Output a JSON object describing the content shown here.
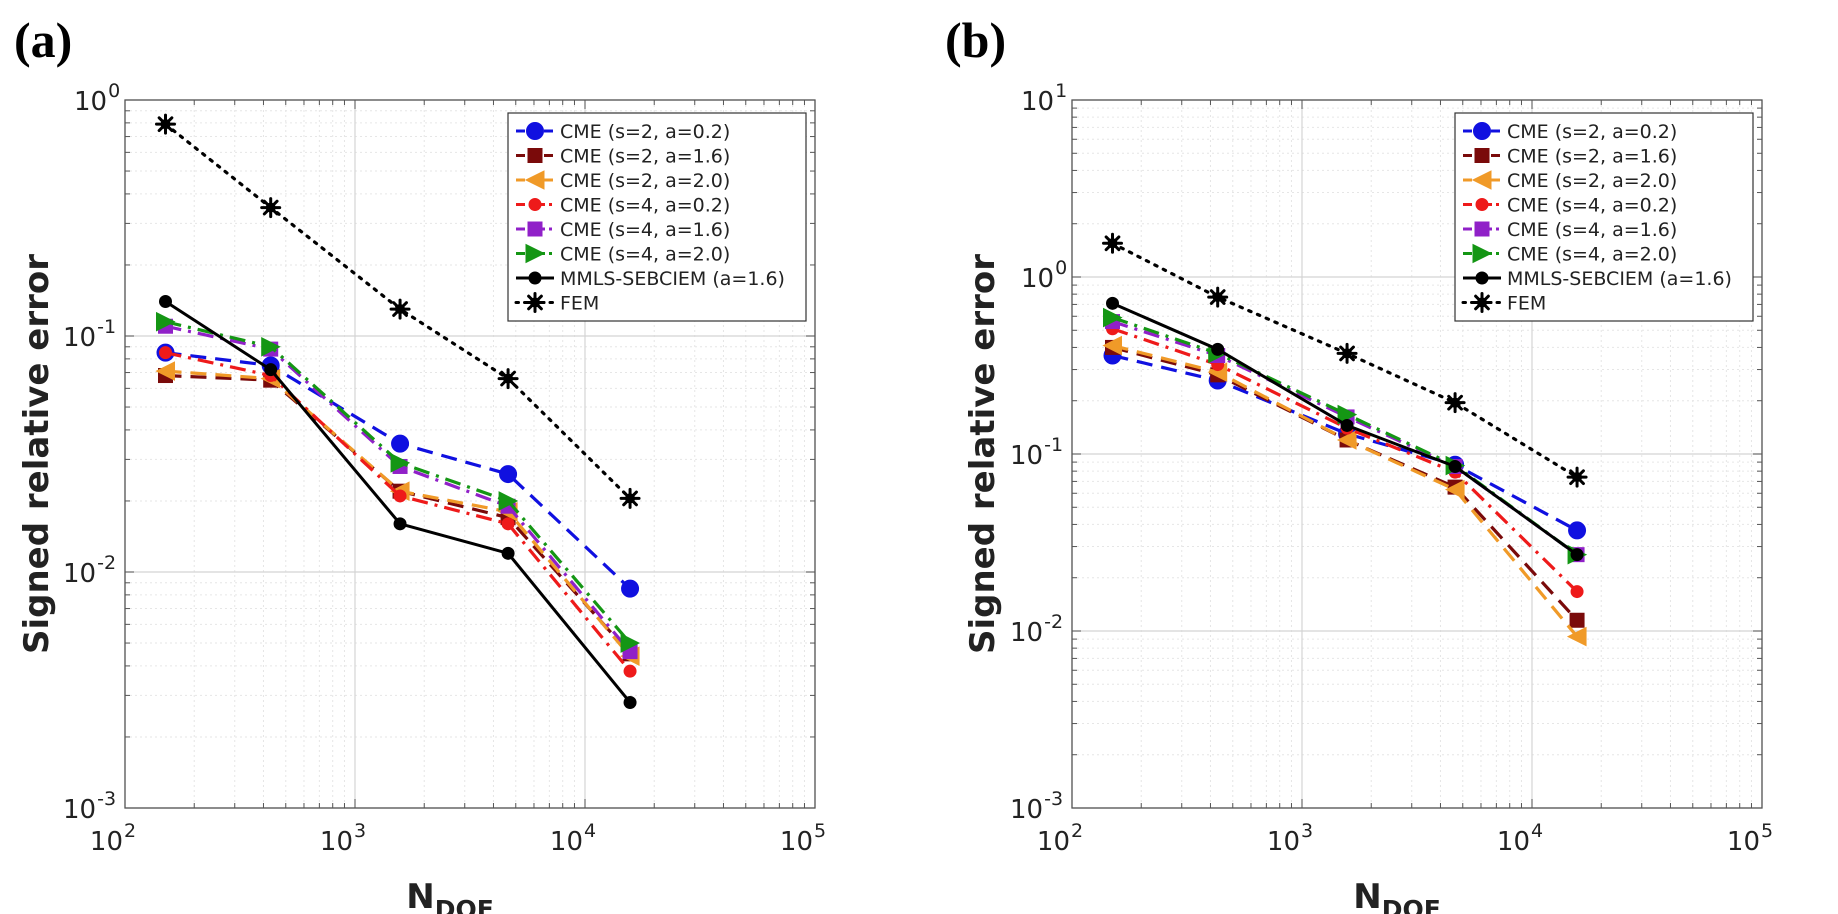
{
  "chart_data": [
    {
      "panel_label": "(a)",
      "type": "line",
      "scale": "loglog",
      "xlabel": {
        "main": "N",
        "sub": "DOF"
      },
      "ylabel": "Signed relative error",
      "xlim": [
        100,
        100000
      ],
      "ylim": [
        0.001,
        1
      ],
      "x_ticks": [
        {
          "base": "10",
          "exp": "2"
        },
        {
          "base": "10",
          "exp": "3"
        },
        {
          "base": "10",
          "exp": "4"
        },
        {
          "base": "10",
          "exp": "5"
        }
      ],
      "y_ticks": [
        {
          "base": "10",
          "exp": "-3"
        },
        {
          "base": "10",
          "exp": "-2"
        },
        {
          "base": "10",
          "exp": "-1"
        },
        {
          "base": "10",
          "exp": "0"
        }
      ],
      "grid": true,
      "legend_position": "top-right",
      "x": [
        150,
        430,
        1570,
        4630,
        15700
      ],
      "series": [
        {
          "name": "CME (s=2, a=0.2)",
          "color": "#1010e0",
          "dash": "dashed",
          "marker": "circle",
          "values": [
            0.085,
            0.075,
            0.035,
            0.026,
            0.0085
          ]
        },
        {
          "name": "CME (s=2, a=1.6)",
          "color": "#7a0a0a",
          "dash": "dashed",
          "marker": "square",
          "values": [
            0.068,
            0.065,
            0.022,
            0.017,
            0.0045
          ]
        },
        {
          "name": "CME (s=2, a=2.0)",
          "color": "#f09a28",
          "dash": "dashed",
          "marker": "triangle-left",
          "values": [
            0.071,
            0.066,
            0.022,
            0.018,
            0.0044
          ]
        },
        {
          "name": "CME (s=4, a=0.2)",
          "color": "#ee1a1a",
          "dash": "dashdot",
          "marker": "circle-small",
          "values": [
            0.085,
            0.068,
            0.021,
            0.016,
            0.0038
          ]
        },
        {
          "name": "CME (s=4, a=1.6)",
          "color": "#9020c8",
          "dash": "dashdot",
          "marker": "square",
          "values": [
            0.11,
            0.088,
            0.028,
            0.019,
            0.0046
          ]
        },
        {
          "name": "CME (s=4, a=2.0)",
          "color": "#149614",
          "dash": "dashdot",
          "marker": "triangle-right",
          "values": [
            0.115,
            0.09,
            0.029,
            0.02,
            0.005
          ]
        },
        {
          "name": "MMLS-SEBCIEM (a=1.6)",
          "color": "#000000",
          "dash": "solid",
          "marker": "circle-small",
          "values": [
            0.14,
            0.072,
            0.016,
            0.012,
            0.0028
          ]
        },
        {
          "name": "FEM",
          "color": "#000000",
          "dash": "dotted",
          "marker": "star",
          "values": [
            0.79,
            0.35,
            0.13,
            0.066,
            0.0205
          ]
        }
      ]
    },
    {
      "panel_label": "(b)",
      "type": "line",
      "scale": "loglog",
      "xlabel": {
        "main": "N",
        "sub": "DOF"
      },
      "ylabel": "Signed relative error",
      "xlim": [
        100,
        100000
      ],
      "ylim": [
        0.001,
        10
      ],
      "x_ticks": [
        {
          "base": "10",
          "exp": "2"
        },
        {
          "base": "10",
          "exp": "3"
        },
        {
          "base": "10",
          "exp": "4"
        },
        {
          "base": "10",
          "exp": "5"
        }
      ],
      "y_ticks": [
        {
          "base": "10",
          "exp": "-3"
        },
        {
          "base": "10",
          "exp": "-2"
        },
        {
          "base": "10",
          "exp": "-1"
        },
        {
          "base": "10",
          "exp": "0"
        },
        {
          "base": "10",
          "exp": "1"
        }
      ],
      "grid": true,
      "legend_position": "top-right",
      "x": [
        150,
        430,
        1570,
        4630,
        15700
      ],
      "series": [
        {
          "name": "CME (s=2, a=0.2)",
          "color": "#1010e0",
          "dash": "dashed",
          "marker": "circle",
          "values": [
            0.36,
            0.26,
            0.13,
            0.087,
            0.037
          ]
        },
        {
          "name": "CME (s=2, a=1.6)",
          "color": "#7a0a0a",
          "dash": "dashed",
          "marker": "square",
          "values": [
            0.4,
            0.28,
            0.12,
            0.065,
            0.0115
          ]
        },
        {
          "name": "CME (s=2, a=2.0)",
          "color": "#f09a28",
          "dash": "dashed",
          "marker": "triangle-left",
          "values": [
            0.41,
            0.29,
            0.12,
            0.063,
            0.0093
          ]
        },
        {
          "name": "CME (s=4, a=0.2)",
          "color": "#ee1a1a",
          "dash": "dashdot",
          "marker": "circle-small",
          "values": [
            0.51,
            0.32,
            0.14,
            0.079,
            0.0167
          ]
        },
        {
          "name": "CME (s=4, a=1.6)",
          "color": "#9020c8",
          "dash": "dashdot",
          "marker": "square",
          "values": [
            0.56,
            0.36,
            0.162,
            0.085,
            0.027
          ]
        },
        {
          "name": "CME (s=4, a=2.0)",
          "color": "#149614",
          "dash": "dashdot",
          "marker": "triangle-right",
          "values": [
            0.59,
            0.37,
            0.167,
            0.086,
            0.027
          ]
        },
        {
          "name": "MMLS-SEBCIEM (a=1.6)",
          "color": "#000000",
          "dash": "solid",
          "marker": "circle-small",
          "values": [
            0.71,
            0.39,
            0.145,
            0.085,
            0.027
          ]
        },
        {
          "name": "FEM",
          "color": "#000000",
          "dash": "dotted",
          "marker": "star",
          "values": [
            1.55,
            0.77,
            0.37,
            0.195,
            0.074
          ]
        }
      ]
    }
  ]
}
